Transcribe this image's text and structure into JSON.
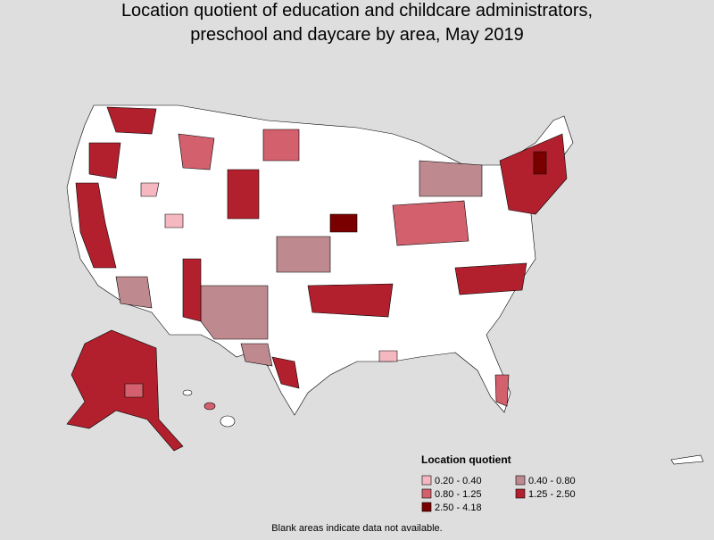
{
  "title": [
    "Location quotient of education and childcare administrators,",
    "preschool and daycare by area, May 2019"
  ],
  "legend": {
    "title": "Location quotient",
    "items": [
      {
        "label": "0.20 - 0.40",
        "color": "#f5b8c1"
      },
      {
        "label": "0.40 - 0.80",
        "color": "#bf8a8f"
      },
      {
        "label": "0.80 - 1.25",
        "color": "#d3606d"
      },
      {
        "label": "1.25 - 2.50",
        "color": "#b2202e"
      },
      {
        "label": "2.50 - 4.18",
        "color": "#7a0000"
      }
    ]
  },
  "footnote": "Blank areas indicate data not available."
}
